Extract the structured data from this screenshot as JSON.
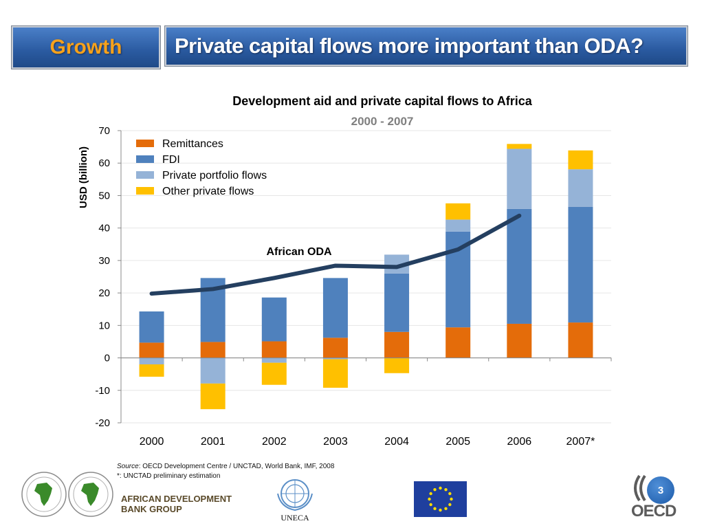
{
  "header": {
    "section_label": "Growth",
    "title": "Private capital flows more important than ODA?"
  },
  "chart_data": {
    "type": "bar",
    "stacked": true,
    "title": "Development aid and private capital flows to Africa",
    "subtitle": "2000 - 2007",
    "xlabel": "",
    "ylabel": "USD (billion)",
    "ylim": [
      -20,
      70
    ],
    "yticks": [
      -20,
      -10,
      0,
      10,
      20,
      30,
      40,
      50,
      60,
      70
    ],
    "categories": [
      "2000",
      "2001",
      "2002",
      "2003",
      "2004",
      "2005",
      "2006",
      "2007*"
    ],
    "legend_position": "top-left",
    "grid": true,
    "series": [
      {
        "name": "Remittances",
        "color": "#e46c0a",
        "values": [
          4.7,
          4.9,
          5.1,
          6.2,
          8.0,
          9.4,
          10.5,
          10.9
        ]
      },
      {
        "name": "FDI",
        "color": "#4f81bd",
        "values": [
          9.6,
          19.7,
          13.5,
          18.4,
          18.0,
          29.5,
          35.4,
          35.6
        ]
      },
      {
        "name": "Private portfolio flows",
        "color": "#95b3d7",
        "values": [
          -2.0,
          -7.9,
          -1.5,
          -0.4,
          5.8,
          3.7,
          18.5,
          11.6
        ]
      },
      {
        "name": "Other private flows",
        "color": "#ffc000",
        "values": [
          -3.8,
          -7.9,
          -6.8,
          -8.8,
          -4.7,
          5.0,
          1.5,
          5.8
        ]
      }
    ],
    "line_series": {
      "name": "African ODA",
      "color": "#243f60",
      "values": [
        19.8,
        21.2,
        24.6,
        28.4,
        28.0,
        33.4,
        43.8,
        null
      ]
    }
  },
  "footer": {
    "source_label": "Source",
    "source_text": ": OECD Development Centre / UNCTAD, World Bank, IMF, 2008",
    "note_text": "*: UNCTAD preliminary estimation",
    "afdb_line1": "AFRICAN DEVELOPMENT",
    "afdb_line2": "BANK GROUP",
    "uneca_label": "UNECA",
    "page_number": "3",
    "oecd_label": "OECD"
  }
}
